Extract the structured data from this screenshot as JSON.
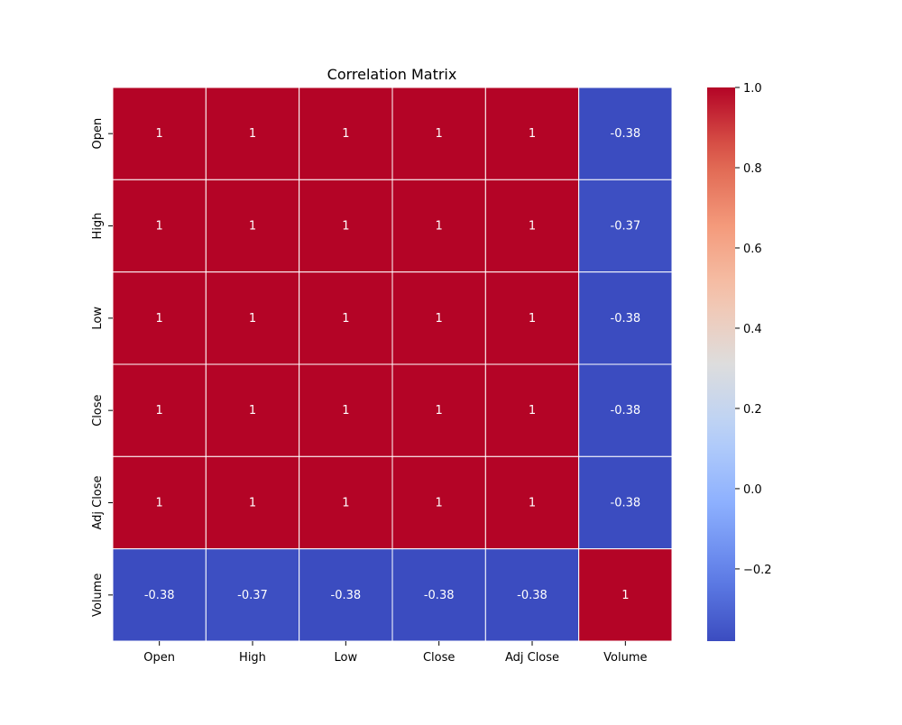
{
  "chart_data": {
    "type": "heatmap",
    "title": "Correlation Matrix",
    "x_categories": [
      "Open",
      "High",
      "Low",
      "Close",
      "Adj Close",
      "Volume"
    ],
    "y_categories": [
      "Open",
      "High",
      "Low",
      "Close",
      "Adj Close",
      "Volume"
    ],
    "values": [
      [
        1,
        1,
        1,
        1,
        1,
        -0.38
      ],
      [
        1,
        1,
        1,
        1,
        1,
        -0.37
      ],
      [
        1,
        1,
        1,
        1,
        1,
        -0.38
      ],
      [
        1,
        1,
        1,
        1,
        1,
        -0.38
      ],
      [
        1,
        1,
        1,
        1,
        1,
        -0.38
      ],
      [
        -0.38,
        -0.37,
        -0.38,
        -0.38,
        -0.38,
        1
      ]
    ],
    "annotations": true,
    "colormap": "coolwarm",
    "vmin": -0.38,
    "vmax": 1.0,
    "colorbar": {
      "ticks": [
        -0.2,
        0.0,
        0.2,
        0.4,
        0.6,
        0.8,
        1.0
      ],
      "tick_labels": [
        "−0.2",
        "0.0",
        "0.2",
        "0.4",
        "0.6",
        "0.8",
        "1.0"
      ],
      "placement": "right"
    },
    "cell_text_color": "#ffffff",
    "cell_border_color": "#ffffff"
  }
}
